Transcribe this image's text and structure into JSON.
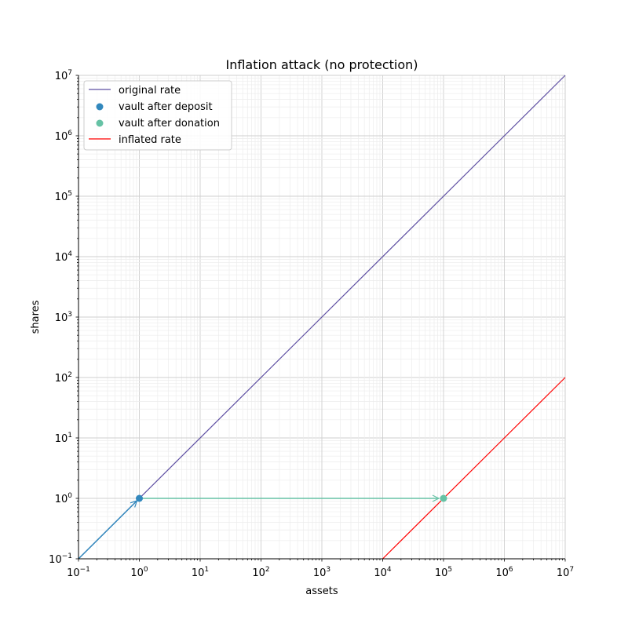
{
  "chart_data": {
    "type": "line",
    "title": "Inflation attack (no protection)",
    "xlabel": "assets",
    "ylabel": "shares",
    "xscale": "log",
    "yscale": "log",
    "xlim": [
      0.1,
      10000000
    ],
    "ylim": [
      0.1,
      10000000
    ],
    "grid": "major and minor",
    "legend_position": "top-left",
    "x_tick_exponents": [
      -1,
      0,
      1,
      2,
      3,
      4,
      5,
      6,
      7
    ],
    "y_tick_exponents": [
      -1,
      0,
      1,
      2,
      3,
      4,
      5,
      6,
      7
    ],
    "series": [
      {
        "name": "original rate",
        "kind": "line",
        "color": "#5e4fa2",
        "x": [
          0.1,
          10000000
        ],
        "y": [
          0.1,
          10000000
        ]
      },
      {
        "name": "vault after deposit",
        "kind": "scatter",
        "color": "#3288bd",
        "x": [
          1
        ],
        "y": [
          1
        ]
      },
      {
        "name": "vault after donation",
        "kind": "scatter",
        "color": "#66c2a5",
        "x": [
          100000
        ],
        "y": [
          1
        ]
      },
      {
        "name": "inflated rate",
        "kind": "line",
        "color": "#ff0000",
        "x": [
          10000,
          10000000
        ],
        "y": [
          0.1,
          100
        ]
      }
    ],
    "arrows": [
      {
        "from": [
          0.1,
          0.1
        ],
        "to": [
          1,
          1
        ],
        "color": "#3288bd"
      },
      {
        "from": [
          1,
          1
        ],
        "to": [
          100000,
          1
        ],
        "color": "#66c2a5"
      }
    ]
  }
}
